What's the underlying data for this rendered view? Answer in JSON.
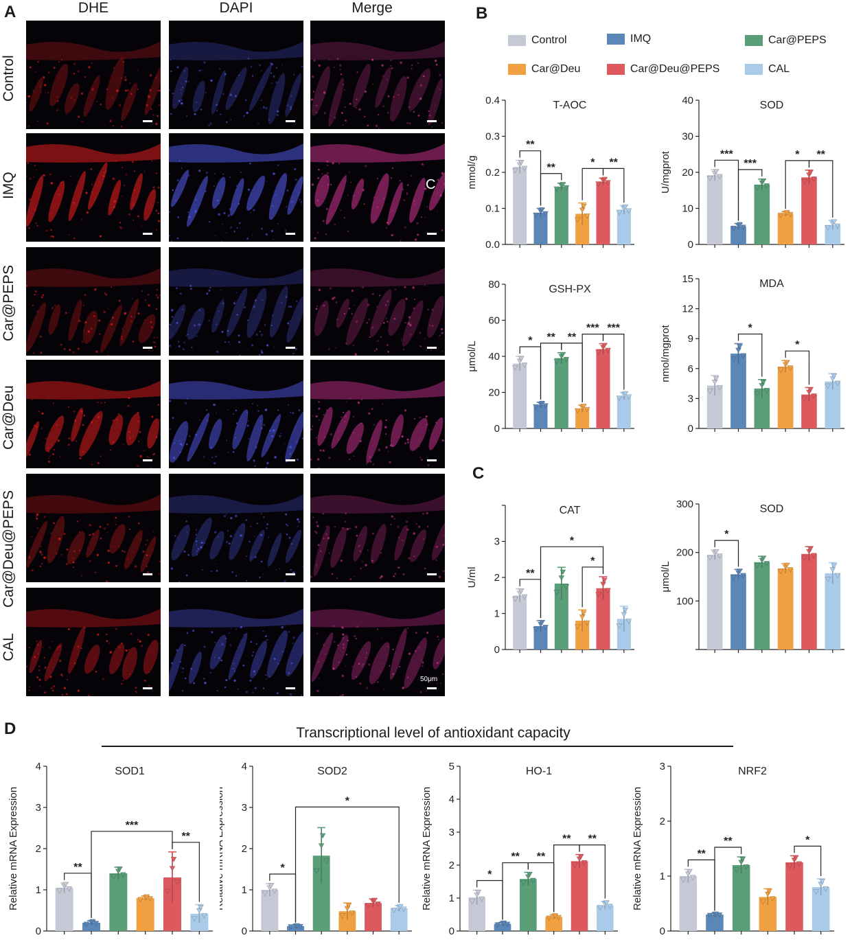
{
  "panelA": {
    "letter": "A",
    "columns": [
      "DHE",
      "DAPI",
      "Merge"
    ],
    "rows": [
      "Control",
      "IMQ",
      "Car@PEPS",
      "Car@Deu",
      "Car@Deu@PEPS",
      "CAL"
    ],
    "scale_text": "50μm",
    "stray_label": "C"
  },
  "panelB": {
    "letter": "B"
  },
  "panelC": {
    "letter": "C"
  },
  "panelD": {
    "letter": "D",
    "title": "Transcriptional level of antioxidant capacity"
  },
  "groups": [
    "Control",
    "IMQ",
    "Car@PEPS",
    "Car@Deu",
    "Car@Deu@PEPS",
    "CAL"
  ],
  "colors": [
    "#c5c9d6",
    "#5b86b8",
    "#5a9e78",
    "#f0a041",
    "#dc5a5e",
    "#a9cbe9"
  ],
  "chart_data": [
    {
      "id": "taoc",
      "type": "bar",
      "title": "T-AOC",
      "ylabel": "mmol/g",
      "ylim": [
        0,
        0.4
      ],
      "ticks": [
        "0.0",
        "0.1",
        "0.2",
        "0.3",
        "0.4"
      ],
      "values": [
        0.215,
        0.088,
        0.16,
        0.085,
        0.174,
        0.096
      ],
      "errors": [
        0.018,
        0.012,
        0.01,
        0.03,
        0.01,
        0.012
      ],
      "sig": [
        {
          "a": 0,
          "b": 1,
          "label": "**"
        },
        {
          "a": 1,
          "b": 2,
          "label": "**"
        },
        {
          "a": 3,
          "b": 4,
          "label": "*"
        },
        {
          "a": 4,
          "b": 5,
          "label": "**"
        }
      ]
    },
    {
      "id": "sod_b",
      "type": "bar",
      "title": "SOD",
      "ylabel": "U/mgprot",
      "ylim": [
        0,
        40
      ],
      "ticks": [
        "0",
        "10",
        "20",
        "30",
        "40"
      ],
      "values": [
        19.2,
        5.0,
        16.6,
        8.5,
        18.6,
        5.4
      ],
      "errors": [
        1.5,
        0.8,
        1.5,
        0.6,
        2.0,
        1.3
      ],
      "sig": [
        {
          "a": 0,
          "b": 1,
          "label": "***"
        },
        {
          "a": 1,
          "b": 2,
          "label": "***"
        },
        {
          "a": 3,
          "b": 4,
          "label": "*"
        },
        {
          "a": 4,
          "b": 5,
          "label": "**"
        }
      ]
    },
    {
      "id": "gshpx",
      "type": "bar",
      "title": "GSH-PX",
      "ylabel": "μmol/L",
      "ylim": [
        0,
        80
      ],
      "ticks": [
        "0",
        "20",
        "40",
        "60",
        "80"
      ],
      "values": [
        36,
        13,
        39,
        11,
        44,
        18
      ],
      "errors": [
        4,
        1.5,
        3,
        2,
        3,
        2
      ],
      "sig": [
        {
          "a": 0,
          "b": 1,
          "label": "*"
        },
        {
          "a": 1,
          "b": 2,
          "label": "**"
        },
        {
          "a": 2,
          "b": 3,
          "label": "**"
        },
        {
          "a": 3,
          "b": 4,
          "label": "***"
        },
        {
          "a": 4,
          "b": 5,
          "label": "***"
        }
      ]
    },
    {
      "id": "mda",
      "type": "bar",
      "title": "MDA",
      "ylabel": "nmol/mgprot",
      "ylim": [
        0,
        15
      ],
      "ticks": [
        "0",
        "3",
        "6",
        "9",
        "12",
        "15"
      ],
      "values": [
        4.3,
        7.5,
        4.0,
        6.2,
        3.4,
        4.7
      ],
      "errors": [
        1.0,
        1.0,
        0.9,
        0.6,
        0.7,
        0.8
      ],
      "sig": [
        {
          "a": 1,
          "b": 2,
          "label": "*"
        },
        {
          "a": 3,
          "b": 4,
          "label": "*"
        }
      ]
    },
    {
      "id": "cat",
      "type": "bar",
      "title": "CAT",
      "ylabel": "U/ml",
      "ylim": [
        0,
        4
      ],
      "ticks": [
        "0",
        "1",
        "2",
        "3",
        ""
      ],
      "values": [
        1.5,
        0.65,
        1.83,
        0.8,
        1.7,
        0.85
      ],
      "errors": [
        0.18,
        0.15,
        0.45,
        0.3,
        0.32,
        0.35
      ],
      "sig": [
        {
          "a": 0,
          "b": 1,
          "label": "**"
        },
        {
          "a": 1,
          "b": 4,
          "label": "*"
        },
        {
          "a": 3,
          "b": 4,
          "label": "*"
        }
      ]
    },
    {
      "id": "sod_c",
      "type": "bar",
      "title": "SOD",
      "ylabel": "μmol/L",
      "ylim": [
        0,
        300
      ],
      "ticks": [
        "",
        "100",
        "200",
        "300"
      ],
      "values": [
        195,
        155,
        180,
        167,
        197,
        157
      ],
      "errors": [
        10,
        10,
        12,
        10,
        15,
        22
      ],
      "sig": [
        {
          "a": 0,
          "b": 1,
          "label": "*"
        }
      ]
    },
    {
      "id": "sod1",
      "type": "bar",
      "title": "SOD1",
      "ylabel": "Relative mRNA Expression",
      "ylim": [
        0,
        4
      ],
      "ticks": [
        "0",
        "1",
        "2",
        "3",
        "4"
      ],
      "values": [
        1.05,
        0.2,
        1.4,
        0.8,
        1.3,
        0.42
      ],
      "errors": [
        0.12,
        0.05,
        0.15,
        0.05,
        0.62,
        0.22
      ],
      "sig": [
        {
          "a": 0,
          "b": 1,
          "label": "**"
        },
        {
          "a": 1,
          "b": 4,
          "label": "***"
        },
        {
          "a": 4,
          "b": 5,
          "label": "**"
        }
      ]
    },
    {
      "id": "sod2",
      "type": "bar",
      "title": "SOD2",
      "ylabel": "Relative mRNA Expression",
      "ylim": [
        0,
        4
      ],
      "ticks": [
        "0",
        "1",
        "2",
        "3",
        "4"
      ],
      "values": [
        1.0,
        0.12,
        1.83,
        0.48,
        0.68,
        0.55
      ],
      "errors": [
        0.15,
        0.02,
        0.68,
        0.2,
        0.1,
        0.07
      ],
      "sig": [
        {
          "a": 0,
          "b": 1,
          "label": "*"
        },
        {
          "a": 1,
          "b": 5,
          "label": "*"
        }
      ]
    },
    {
      "id": "ho1",
      "type": "bar",
      "title": "HO-1",
      "ylabel": "Relative mRNA Expression",
      "ylim": [
        0,
        5
      ],
      "ticks": [
        "0",
        "1",
        "2",
        "3",
        "4",
        "5"
      ],
      "values": [
        1.02,
        0.22,
        1.58,
        0.43,
        2.12,
        0.78
      ],
      "errors": [
        0.22,
        0.04,
        0.2,
        0.06,
        0.2,
        0.12
      ],
      "sig": [
        {
          "a": 0,
          "b": 1,
          "label": "*"
        },
        {
          "a": 1,
          "b": 2,
          "label": "**"
        },
        {
          "a": 2,
          "b": 3,
          "label": "**"
        },
        {
          "a": 3,
          "b": 4,
          "label": "**"
        },
        {
          "a": 4,
          "b": 5,
          "label": "**"
        }
      ]
    },
    {
      "id": "nrf2",
      "type": "bar",
      "title": "NRF2",
      "ylabel": "Relative mRNA Expression",
      "ylim": [
        0,
        3
      ],
      "ticks": [
        "0",
        "1",
        "2",
        "3"
      ],
      "values": [
        1.0,
        0.3,
        1.2,
        0.62,
        1.25,
        0.8
      ],
      "errors": [
        0.12,
        0.02,
        0.15,
        0.15,
        0.12,
        0.15
      ],
      "sig": [
        {
          "a": 0,
          "b": 1,
          "label": "**"
        },
        {
          "a": 1,
          "b": 2,
          "label": "**"
        },
        {
          "a": 4,
          "b": 5,
          "label": "*"
        }
      ]
    }
  ]
}
